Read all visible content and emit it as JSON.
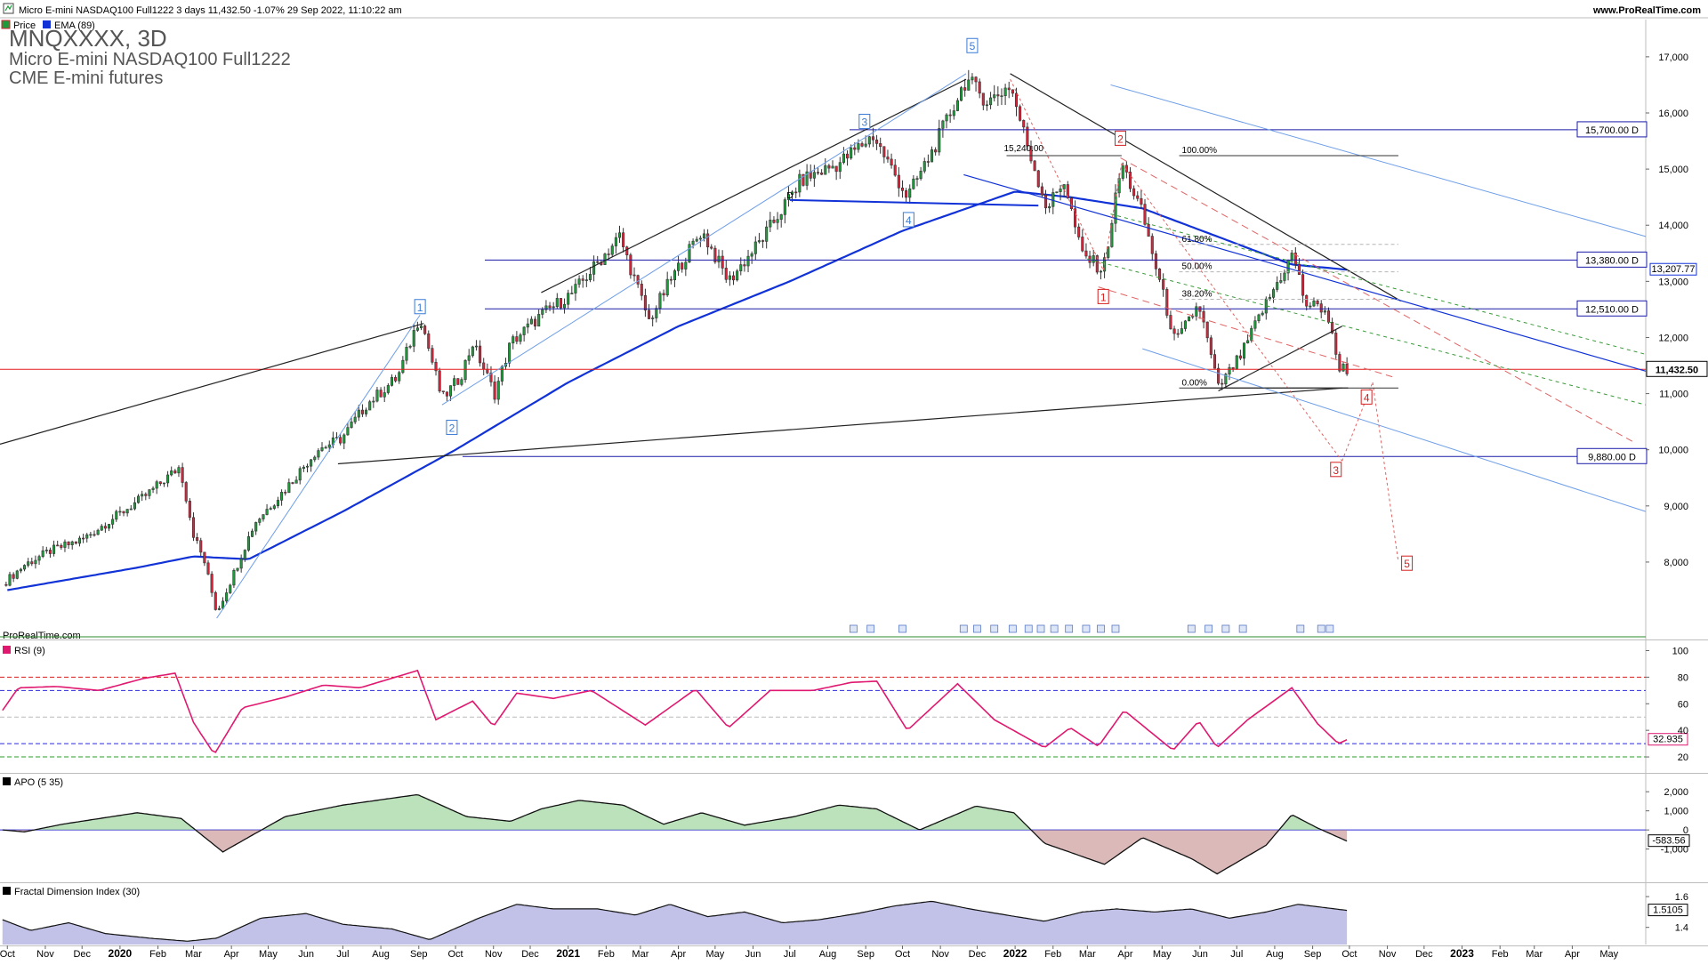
{
  "header": {
    "title": "Micro E-mini NASDAQ100 Full1222 3 days 11,432.50 -1.07% 29 Sep 2022, 11:10:22 am",
    "site": "www.ProRealTime.com",
    "legend_price": "Price",
    "legend_ema": "EMA (89)"
  },
  "watermark": {
    "ticker": "MNQXXXX, 3D",
    "name": "Micro E-mini NASDAQ100 Full1222",
    "exchange": "CME E-mini futures",
    "source": "ProRealTime.com"
  },
  "colors": {
    "up": "#1e9b3a",
    "down": "#d6243a",
    "ema": "#1032d6",
    "last_price": "#e31b1b",
    "level_line": "#1a1aa8",
    "channel_light": "#6d9ee8",
    "rsi": "#e0186f",
    "apo_pos": "#8fcf8f",
    "apo_neg": "#c58a8a",
    "fdi_fill": "#8f8fd6"
  },
  "chart_data": [
    {
      "type": "candlestick",
      "title": "Micro E-mini NASDAQ100 Full1222",
      "ylim": [
        6700,
        17600
      ],
      "yticks": [
        8000,
        9000,
        10000,
        11000,
        12000,
        13000,
        14000,
        15000,
        16000,
        17000
      ],
      "ytick_labels": [
        "8,000",
        "9,000",
        "10,000",
        "11,000",
        "12,000",
        "13,000",
        "14,000",
        "15,000",
        "16,000",
        "17,000"
      ],
      "xlim": [
        "2019-09-25",
        "2023-05-31"
      ],
      "xticks": [
        {
          "label": "Oct",
          "date": "2019-10-01"
        },
        {
          "label": "Nov",
          "date": "2019-11-01"
        },
        {
          "label": "Dec",
          "date": "2019-12-01"
        },
        {
          "label": "2020",
          "date": "2020-01-01",
          "year": true
        },
        {
          "label": "Feb",
          "date": "2020-02-01"
        },
        {
          "label": "Mar",
          "date": "2020-03-01"
        },
        {
          "label": "Apr",
          "date": "2020-04-01"
        },
        {
          "label": "May",
          "date": "2020-05-01"
        },
        {
          "label": "Jun",
          "date": "2020-06-01"
        },
        {
          "label": "Jul",
          "date": "2020-07-01"
        },
        {
          "label": "Aug",
          "date": "2020-08-01"
        },
        {
          "label": "Sep",
          "date": "2020-09-01"
        },
        {
          "label": "Oct",
          "date": "2020-10-01"
        },
        {
          "label": "Nov",
          "date": "2020-11-01"
        },
        {
          "label": "Dec",
          "date": "2020-12-01"
        },
        {
          "label": "2021",
          "date": "2021-01-01",
          "year": true
        },
        {
          "label": "Feb",
          "date": "2021-02-01"
        },
        {
          "label": "Mar",
          "date": "2021-03-01"
        },
        {
          "label": "Apr",
          "date": "2021-04-01"
        },
        {
          "label": "May",
          "date": "2021-05-01"
        },
        {
          "label": "Jun",
          "date": "2021-06-01"
        },
        {
          "label": "Jul",
          "date": "2021-07-01"
        },
        {
          "label": "Aug",
          "date": "2021-08-01"
        },
        {
          "label": "Sep",
          "date": "2021-09-01"
        },
        {
          "label": "Oct",
          "date": "2021-10-01"
        },
        {
          "label": "Nov",
          "date": "2021-11-01"
        },
        {
          "label": "Dec",
          "date": "2021-12-01"
        },
        {
          "label": "2022",
          "date": "2022-01-01",
          "year": true
        },
        {
          "label": "Feb",
          "date": "2022-02-01"
        },
        {
          "label": "Mar",
          "date": "2022-03-01"
        },
        {
          "label": "Apr",
          "date": "2022-04-01"
        },
        {
          "label": "May",
          "date": "2022-05-01"
        },
        {
          "label": "Jun",
          "date": "2022-06-01"
        },
        {
          "label": "Jul",
          "date": "2022-07-01"
        },
        {
          "label": "Aug",
          "date": "2022-08-01"
        },
        {
          "label": "Sep",
          "date": "2022-09-01"
        },
        {
          "label": "Oct",
          "date": "2022-10-01"
        },
        {
          "label": "Nov",
          "date": "2022-11-01"
        },
        {
          "label": "Dec",
          "date": "2022-12-01"
        },
        {
          "label": "2023",
          "date": "2023-01-01",
          "year": true
        },
        {
          "label": "Feb",
          "date": "2023-02-01"
        },
        {
          "label": "Mar",
          "date": "2023-03-01"
        },
        {
          "label": "Apr",
          "date": "2023-04-01"
        },
        {
          "label": "May",
          "date": "2023-05-01"
        }
      ],
      "price_path": [
        [
          "2019-09-27",
          7600
        ],
        [
          "2019-10-15",
          7950
        ],
        [
          "2019-11-05",
          8200
        ],
        [
          "2019-12-01",
          8400
        ],
        [
          "2019-12-31",
          8850
        ],
        [
          "2020-01-20",
          9150
        ],
        [
          "2020-02-19",
          9700
        ],
        [
          "2020-03-01",
          8500
        ],
        [
          "2020-03-10",
          8000
        ],
        [
          "2020-03-20",
          7100
        ],
        [
          "2020-04-01",
          7700
        ],
        [
          "2020-04-20",
          8700
        ],
        [
          "2020-05-15",
          9300
        ],
        [
          "2020-06-10",
          10000
        ],
        [
          "2020-06-30",
          10200
        ],
        [
          "2020-07-20",
          10800
        ],
        [
          "2020-08-15",
          11300
        ],
        [
          "2020-09-02",
          12400
        ],
        [
          "2020-09-20",
          10900
        ],
        [
          "2020-10-05",
          11300
        ],
        [
          "2020-10-15",
          11900
        ],
        [
          "2020-11-02",
          11000
        ],
        [
          "2020-11-15",
          11900
        ],
        [
          "2020-12-10",
          12400
        ],
        [
          "2021-01-05",
          12800
        ],
        [
          "2021-02-12",
          13800
        ],
        [
          "2021-03-08",
          12300
        ],
        [
          "2021-03-25",
          13000
        ],
        [
          "2021-04-20",
          13900
        ],
        [
          "2021-05-12",
          13000
        ],
        [
          "2021-06-10",
          13800
        ],
        [
          "2021-07-10",
          14800
        ],
        [
          "2021-08-10",
          15100
        ],
        [
          "2021-09-07",
          15600
        ],
        [
          "2021-10-05",
          14500
        ],
        [
          "2021-10-25",
          15300
        ],
        [
          "2021-11-22",
          16600
        ],
        [
          "2021-12-10",
          16200
        ],
        [
          "2021-12-28",
          16500
        ],
        [
          "2022-01-10",
          15500
        ],
        [
          "2022-01-27",
          14300
        ],
        [
          "2022-02-10",
          14800
        ],
        [
          "2022-02-24",
          13500
        ],
        [
          "2022-03-14",
          13200
        ],
        [
          "2022-03-29",
          15100
        ],
        [
          "2022-04-15",
          14200
        ],
        [
          "2022-04-29",
          13000
        ],
        [
          "2022-05-12",
          11900
        ],
        [
          "2022-05-31",
          12600
        ],
        [
          "2022-06-16",
          11100
        ],
        [
          "2022-07-05",
          11700
        ],
        [
          "2022-07-20",
          12400
        ],
        [
          "2022-08-16",
          13500
        ],
        [
          "2022-08-26",
          12600
        ],
        [
          "2022-09-12",
          12500
        ],
        [
          "2022-09-22",
          11500
        ],
        [
          "2022-09-29",
          11432.5
        ]
      ],
      "ema_period": 89,
      "ema_path": [
        [
          "2019-10-01",
          7500
        ],
        [
          "2020-01-15",
          7900
        ],
        [
          "2020-03-01",
          8100
        ],
        [
          "2020-04-15",
          8050
        ],
        [
          "2020-07-01",
          8900
        ],
        [
          "2020-10-01",
          10000
        ],
        [
          "2021-01-01",
          11200
        ],
        [
          "2021-04-01",
          12200
        ],
        [
          "2021-07-01",
          13000
        ],
        [
          "2021-10-01",
          13900
        ],
        [
          "2022-01-01",
          14600
        ],
        [
          "2022-02-15",
          14500
        ],
        [
          "2022-04-15",
          14300
        ],
        [
          "2022-06-15",
          13800
        ],
        [
          "2022-08-15",
          13300
        ],
        [
          "2022-09-29",
          13207.77
        ]
      ],
      "last_price": 11432.5,
      "last_price_label": "11,432.50",
      "ema_value_label": "13,207.77",
      "levels": [
        {
          "value": 15700,
          "label": "15,700.00 D"
        },
        {
          "value": 13380,
          "label": "13,380.00 D"
        },
        {
          "value": 12510,
          "label": "12,510.00 D"
        },
        {
          "value": 9880,
          "label": "9,880.00 D"
        }
      ],
      "fibonacci": {
        "labels": [
          "100.00%",
          "61.80%",
          "50.00%",
          "38.20%",
          "0.00%"
        ],
        "high_label": "15,240.00",
        "low": 11100,
        "high": 15240
      },
      "wave_labels_up": [
        "1",
        "2",
        "3",
        "4",
        "5"
      ],
      "wave_labels_down": [
        "1",
        "2",
        "3",
        "4",
        "5"
      ],
      "marker_D": "D",
      "trendlines": true
    },
    {
      "type": "line",
      "title": "RSI (9)",
      "ylim": [
        10,
        105
      ],
      "yticks": [
        20,
        40,
        60,
        80,
        100
      ],
      "ytick_labels": [
        "20",
        "40",
        "60",
        "80",
        "100"
      ],
      "guides": [
        80,
        70,
        50,
        30,
        20
      ],
      "last_label": "32.935",
      "path": [
        [
          "2019-09-27",
          55
        ],
        [
          "2019-10-10",
          72
        ],
        [
          "2019-11-10",
          73
        ],
        [
          "2019-12-15",
          70
        ],
        [
          "2020-01-20",
          79
        ],
        [
          "2020-02-15",
          83
        ],
        [
          "2020-03-01",
          46
        ],
        [
          "2020-03-18",
          22
        ],
        [
          "2020-04-10",
          57
        ],
        [
          "2020-05-15",
          65
        ],
        [
          "2020-06-15",
          74
        ],
        [
          "2020-07-15",
          72
        ],
        [
          "2020-08-31",
          85
        ],
        [
          "2020-09-15",
          48
        ],
        [
          "2020-10-15",
          62
        ],
        [
          "2020-11-01",
          43
        ],
        [
          "2020-11-20",
          68
        ],
        [
          "2020-12-20",
          64
        ],
        [
          "2021-01-20",
          70
        ],
        [
          "2021-03-05",
          44
        ],
        [
          "2021-04-15",
          71
        ],
        [
          "2021-05-12",
          42
        ],
        [
          "2021-06-15",
          70
        ],
        [
          "2021-07-20",
          70
        ],
        [
          "2021-08-20",
          76
        ],
        [
          "2021-09-10",
          77
        ],
        [
          "2021-10-05",
          40
        ],
        [
          "2021-11-15",
          75
        ],
        [
          "2021-12-15",
          48
        ],
        [
          "2022-01-25",
          27
        ],
        [
          "2022-02-15",
          42
        ],
        [
          "2022-03-10",
          28
        ],
        [
          "2022-03-31",
          55
        ],
        [
          "2022-05-10",
          25
        ],
        [
          "2022-05-31",
          47
        ],
        [
          "2022-06-15",
          27
        ],
        [
          "2022-07-10",
          48
        ],
        [
          "2022-08-15",
          72
        ],
        [
          "2022-09-05",
          45
        ],
        [
          "2022-09-22",
          30
        ],
        [
          "2022-09-29",
          32.935
        ]
      ]
    },
    {
      "type": "area",
      "title": "APO (5 35)",
      "ylim": [
        -2600,
        2800
      ],
      "yticks": [
        -1000,
        0,
        1000,
        2000
      ],
      "ytick_labels": [
        "-1,000",
        "0",
        "1,000",
        "2,000"
      ],
      "last_label": "-583.56",
      "path": [
        [
          "2019-09-27",
          0
        ],
        [
          "2019-10-15",
          -100
        ],
        [
          "2019-11-15",
          300
        ],
        [
          "2020-01-15",
          900
        ],
        [
          "2020-02-20",
          600
        ],
        [
          "2020-03-25",
          -1150
        ],
        [
          "2020-04-20",
          -200
        ],
        [
          "2020-05-15",
          700
        ],
        [
          "2020-07-01",
          1300
        ],
        [
          "2020-08-31",
          1850
        ],
        [
          "2020-10-10",
          700
        ],
        [
          "2020-11-15",
          450
        ],
        [
          "2020-12-10",
          1100
        ],
        [
          "2021-01-10",
          1550
        ],
        [
          "2021-02-15",
          1300
        ],
        [
          "2021-03-20",
          300
        ],
        [
          "2021-04-20",
          900
        ],
        [
          "2021-05-25",
          250
        ],
        [
          "2021-07-05",
          700
        ],
        [
          "2021-08-10",
          1300
        ],
        [
          "2021-09-10",
          1100
        ],
        [
          "2021-10-15",
          0
        ],
        [
          "2021-11-30",
          1250
        ],
        [
          "2021-12-31",
          900
        ],
        [
          "2022-01-25",
          -700
        ],
        [
          "2022-03-15",
          -1800
        ],
        [
          "2022-04-15",
          -400
        ],
        [
          "2022-05-25",
          -1500
        ],
        [
          "2022-06-15",
          -2300
        ],
        [
          "2022-07-25",
          -800
        ],
        [
          "2022-08-15",
          800
        ],
        [
          "2022-09-05",
          100
        ],
        [
          "2022-09-29",
          -583.56
        ]
      ]
    },
    {
      "type": "area",
      "title": "Fractal Dimension Index (30)",
      "ylim": [
        1.3,
        1.67
      ],
      "yticks": [
        1.4,
        1.6
      ],
      "ytick_labels": [
        "1.4",
        "1.6"
      ],
      "last_label": "1.5105",
      "path": [
        [
          "2019-09-27",
          1.45
        ],
        [
          "2019-10-20",
          1.38
        ],
        [
          "2019-11-20",
          1.43
        ],
        [
          "2019-12-20",
          1.36
        ],
        [
          "2020-01-25",
          1.33
        ],
        [
          "2020-02-25",
          1.31
        ],
        [
          "2020-03-20",
          1.33
        ],
        [
          "2020-04-25",
          1.46
        ],
        [
          "2020-06-01",
          1.49
        ],
        [
          "2020-07-01",
          1.42
        ],
        [
          "2020-08-10",
          1.39
        ],
        [
          "2020-09-10",
          1.32
        ],
        [
          "2020-10-20",
          1.46
        ],
        [
          "2020-11-20",
          1.55
        ],
        [
          "2020-12-20",
          1.52
        ],
        [
          "2021-01-25",
          1.52
        ],
        [
          "2021-02-25",
          1.48
        ],
        [
          "2021-03-25",
          1.55
        ],
        [
          "2021-04-25",
          1.47
        ],
        [
          "2021-05-25",
          1.5
        ],
        [
          "2021-06-25",
          1.43
        ],
        [
          "2021-07-25",
          1.45
        ],
        [
          "2021-08-25",
          1.49
        ],
        [
          "2021-09-25",
          1.54
        ],
        [
          "2021-10-25",
          1.57
        ],
        [
          "2021-11-25",
          1.52
        ],
        [
          "2021-12-25",
          1.48
        ],
        [
          "2022-01-25",
          1.44
        ],
        [
          "2022-02-25",
          1.5
        ],
        [
          "2022-03-25",
          1.52
        ],
        [
          "2022-04-25",
          1.5
        ],
        [
          "2022-05-25",
          1.52
        ],
        [
          "2022-06-25",
          1.46
        ],
        [
          "2022-07-25",
          1.5
        ],
        [
          "2022-08-20",
          1.55
        ],
        [
          "2022-09-29",
          1.5105
        ]
      ]
    }
  ]
}
